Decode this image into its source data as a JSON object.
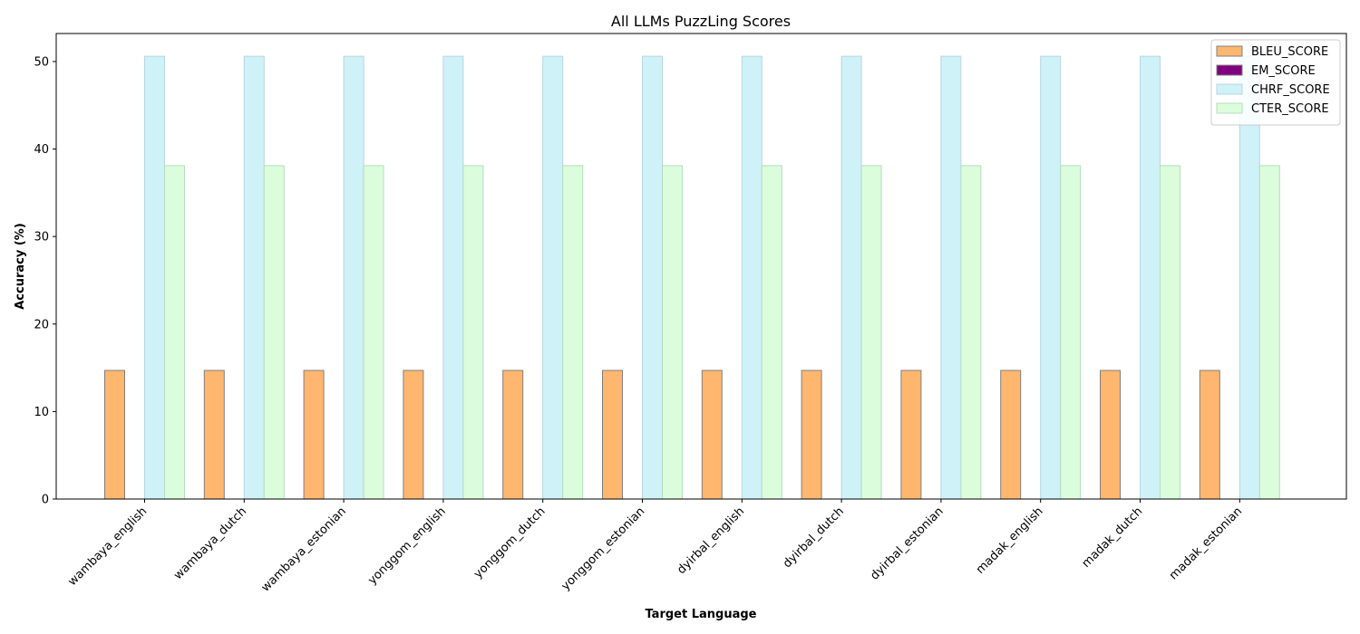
{
  "chart_data": {
    "type": "bar",
    "title": "All LLMs PuzzLing Scores",
    "xlabel": "Target Language",
    "ylabel": "Accuracy (%)",
    "ylim": [
      0,
      53.2
    ],
    "yticks": [
      0,
      10,
      20,
      30,
      40,
      50
    ],
    "grid": false,
    "legend_position": "top-right",
    "categories": [
      "wambaya_english",
      "wambaya_dutch",
      "wambaya_estonian",
      "yonggom_english",
      "yonggom_dutch",
      "yonggom_estonian",
      "dyirbal_english",
      "dyirbal_dutch",
      "dyirbal_estonian",
      "madak_english",
      "madak_dutch",
      "madak_estonian"
    ],
    "series": [
      {
        "name": "BLEU_SCORE",
        "color": "#ffb66e",
        "edge": "#808080",
        "values": [
          14.7,
          14.7,
          14.7,
          14.7,
          14.7,
          14.7,
          14.7,
          14.7,
          14.7,
          14.7,
          14.7,
          14.7
        ]
      },
      {
        "name": "EM_SCORE",
        "color": "#800080",
        "edge": "#808080",
        "values": [
          0,
          0,
          0,
          0,
          0,
          0,
          0,
          0,
          0,
          0,
          0,
          0
        ]
      },
      {
        "name": "CHRF_SCORE",
        "color": "#cff1f8",
        "edge": "#b7d6e0",
        "values": [
          50.6,
          50.6,
          50.6,
          50.6,
          50.6,
          50.6,
          50.6,
          50.6,
          50.6,
          50.6,
          50.6,
          50.6
        ]
      },
      {
        "name": "CTER_SCORE",
        "color": "#dbfddc",
        "edge": "#b5dcc0",
        "values": [
          38.1,
          38.1,
          38.1,
          38.1,
          38.1,
          38.1,
          38.1,
          38.1,
          38.1,
          38.1,
          38.1,
          38.1
        ]
      }
    ]
  }
}
